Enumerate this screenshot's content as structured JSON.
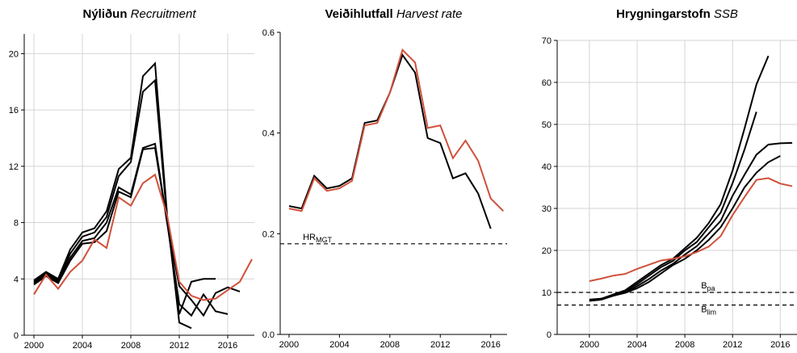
{
  "chart_data": [
    {
      "type": "line",
      "title": "Nýliðun",
      "subtitle": "Recruitment",
      "grid": true,
      "x": [
        2000,
        2001,
        2002,
        2003,
        2004,
        2005,
        2006,
        2007,
        2008,
        2009,
        2010,
        2011,
        2012,
        2013,
        2014,
        2015,
        2016,
        2017,
        2018
      ],
      "xlim": [
        1999.2,
        2018.2
      ],
      "xticks": [
        2000,
        2004,
        2008,
        2012,
        2016
      ],
      "ylim": [
        0,
        21.4
      ],
      "yticks": [
        0,
        4,
        8,
        12,
        16,
        20
      ],
      "series": [
        {
          "color": "#000000",
          "values": [
            3.9,
            4.5,
            4.0,
            6.1,
            7.3,
            7.6,
            8.8,
            11.8,
            12.6,
            18.4,
            19.3,
            8.5,
            0.9,
            0.5,
            null,
            null,
            null,
            null,
            null
          ]
        },
        {
          "color": "#000000",
          "values": [
            3.8,
            4.4,
            3.9,
            5.8,
            7.0,
            7.3,
            8.4,
            11.3,
            12.3,
            17.3,
            18.1,
            8.2,
            1.5,
            3.8,
            4.0,
            4.0,
            null,
            null,
            null
          ]
        },
        {
          "color": "#000000",
          "values": [
            3.7,
            4.3,
            3.8,
            5.5,
            6.7,
            6.9,
            8.0,
            10.5,
            10.0,
            13.3,
            13.6,
            8.0,
            2.2,
            1.4,
            2.9,
            1.7,
            1.5,
            null,
            null
          ]
        },
        {
          "color": "#000000",
          "values": [
            3.6,
            4.2,
            3.7,
            5.3,
            6.5,
            6.6,
            7.4,
            10.2,
            9.8,
            13.2,
            13.3,
            8.0,
            3.5,
            2.5,
            1.4,
            3.0,
            3.4,
            3.1,
            null
          ]
        },
        {
          "color": "#d0503a",
          "values": [
            2.9,
            4.3,
            3.3,
            4.5,
            5.3,
            6.8,
            6.2,
            9.8,
            9.2,
            10.8,
            11.4,
            8.5,
            3.8,
            2.8,
            2.5,
            2.6,
            3.2,
            3.8,
            5.4
          ]
        }
      ]
    },
    {
      "type": "line",
      "title": "Veiðihlutfall",
      "subtitle": "Harvest rate",
      "grid": false,
      "x": [
        2000,
        2001,
        2002,
        2003,
        2004,
        2005,
        2006,
        2007,
        2008,
        2009,
        2010,
        2011,
        2012,
        2013,
        2014,
        2015,
        2016,
        2017
      ],
      "xlim": [
        1999.3,
        2017.3
      ],
      "xticks": [
        2000,
        2004,
        2008,
        2012,
        2016
      ],
      "ylim": [
        0,
        0.6
      ],
      "yticks": [
        {
          "value": 0,
          "label": "0.0"
        },
        0.2,
        0.4,
        0.6
      ],
      "series": [
        {
          "color": "#000000",
          "values": [
            0.255,
            0.25,
            0.315,
            0.29,
            0.295,
            0.31,
            0.42,
            0.425,
            0.48,
            0.555,
            0.52,
            0.39,
            0.38,
            0.31,
            0.32,
            0.28,
            0.21,
            null
          ]
        },
        {
          "color": "#d0503a",
          "values": [
            0.25,
            0.245,
            0.31,
            0.285,
            0.29,
            0.305,
            0.415,
            0.42,
            0.48,
            0.565,
            0.54,
            0.41,
            0.415,
            0.35,
            0.385,
            0.345,
            0.27,
            0.245
          ]
        }
      ],
      "reference_lines": [
        {
          "text": "HR",
          "sub": "MGT",
          "y": 0.18
        }
      ]
    },
    {
      "type": "line",
      "title": "Hrygningarstofn",
      "subtitle": "SSB",
      "grid": true,
      "x": [
        2000,
        2001,
        2002,
        2003,
        2004,
        2005,
        2006,
        2007,
        2008,
        2009,
        2010,
        2011,
        2012,
        2013,
        2014,
        2015,
        2016,
        2017
      ],
      "xlim": [
        1997.3,
        2017.4
      ],
      "xticks": [
        2000,
        2004,
        2008,
        2012,
        2016
      ],
      "ylim": [
        0,
        70
      ],
      "yticks": [
        0,
        10,
        20,
        30,
        40,
        50,
        60,
        70
      ],
      "series": [
        {
          "color": "#000000",
          "values": [
            8.2,
            8.5,
            9.5,
            10.5,
            12.5,
            14.5,
            16.5,
            18.0,
            20.5,
            23.0,
            26.5,
            31.0,
            39.0,
            49.0,
            59.5,
            66.3,
            null,
            null
          ]
        },
        {
          "color": "#000000",
          "values": [
            8.3,
            8.5,
            9.4,
            10.3,
            12.0,
            14.0,
            16.0,
            17.5,
            20.0,
            22.0,
            25.5,
            29.0,
            36.0,
            44.0,
            53.0,
            null,
            null,
            null
          ]
        },
        {
          "color": "#000000",
          "values": [
            8.0,
            8.3,
            9.3,
            10.0,
            11.5,
            13.2,
            15.2,
            16.8,
            19.0,
            21.0,
            24.0,
            27.0,
            33.0,
            38.0,
            42.8,
            45.2,
            45.5,
            45.6
          ]
        },
        {
          "color": "#000000",
          "values": [
            8.0,
            8.3,
            9.2,
            9.9,
            11.0,
            12.5,
            14.5,
            16.5,
            18.0,
            20.0,
            22.5,
            25.5,
            30.0,
            35.0,
            38.5,
            41.0,
            42.5,
            null
          ]
        },
        {
          "color": "#d0503a",
          "values": [
            12.7,
            13.3,
            14.0,
            14.4,
            15.6,
            16.6,
            17.6,
            18.0,
            18.6,
            19.6,
            20.9,
            23.4,
            28.4,
            32.7,
            36.8,
            37.2,
            35.9,
            35.3
          ]
        }
      ],
      "reference_lines": [
        {
          "text": "B",
          "sub": "pa",
          "y": 10
        },
        {
          "text": "B",
          "sub": "lim",
          "y": 7
        }
      ]
    }
  ]
}
